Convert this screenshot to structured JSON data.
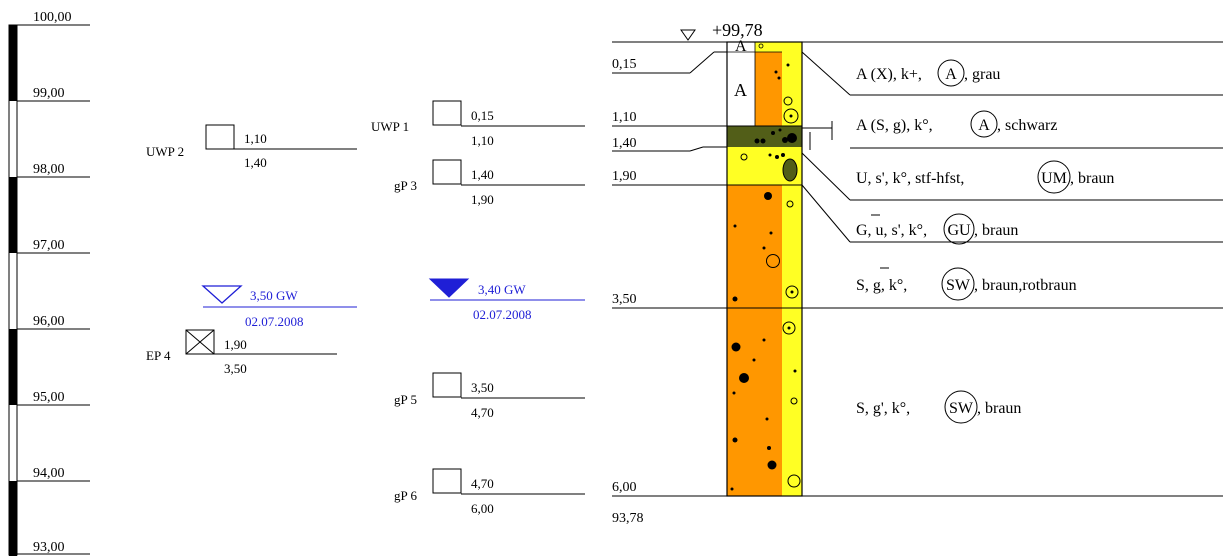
{
  "elevation_scale": {
    "ticks": [
      "100,00",
      "99,00",
      "98,00",
      "97,00",
      "96,00",
      "95,00",
      "94,00",
      "93,00"
    ]
  },
  "samples_left": {
    "uwp2": {
      "name": "UWP 2",
      "top": "1,10",
      "bottom": "1,40"
    },
    "ep4": {
      "name": "EP 4",
      "top": "1,90",
      "bottom": "3,50"
    },
    "groundwater": {
      "depth": "3,50 GW",
      "date": "02.07.2008",
      "symbol": "open-triangle-icon"
    }
  },
  "samples_mid": {
    "uwp1": {
      "name": "UWP 1",
      "top": "0,15",
      "bottom": "1,10"
    },
    "gp3": {
      "name": "gP 3",
      "top": "1,40",
      "bottom": "1,90"
    },
    "gp5": {
      "name": "gP 5",
      "top": "3,50",
      "bottom": "4,70"
    },
    "gp6": {
      "name": "gP 6",
      "top": "4,70",
      "bottom": "6,00"
    },
    "groundwater": {
      "depth": "3,40 GW",
      "date": "02.07.2008",
      "symbol": "filled-triangle-icon"
    }
  },
  "profile": {
    "top_elevation": "+99,78",
    "bottom_elevation": "93,78",
    "depths": [
      "0,15",
      "1,10",
      "1,40",
      "1,90",
      "3,50",
      "6,00"
    ],
    "fill_label": "A",
    "layers": [
      {
        "pre": "A (X), k+,",
        "code": "A",
        "post": ", grau",
        "color": "#ffffff"
      },
      {
        "pre": "A (S, g), k°,",
        "code": "A",
        "post": ", schwarz",
        "color": "#525e18"
      },
      {
        "pre": "U, s', k°, stf-hfst,",
        "code": "UM",
        "post": ", braun",
        "color": "#ffff24"
      },
      {
        "pre": "G, u, s', k°,",
        "code": "GU",
        "post": ", braun",
        "color": "#ff9700"
      },
      {
        "pre": "S, g, k°,",
        "code": "SW",
        "post": ", braun,rotbraun",
        "color": "#ff9700"
      },
      {
        "pre": "S, g', k°,",
        "code": "SW",
        "post": ", braun",
        "color": "#ff9700"
      }
    ]
  },
  "colors": {
    "orange": "#ff9700",
    "yellow": "#ffff24",
    "olive": "#525e18",
    "groundwater_blue": "#1f1fd6"
  }
}
